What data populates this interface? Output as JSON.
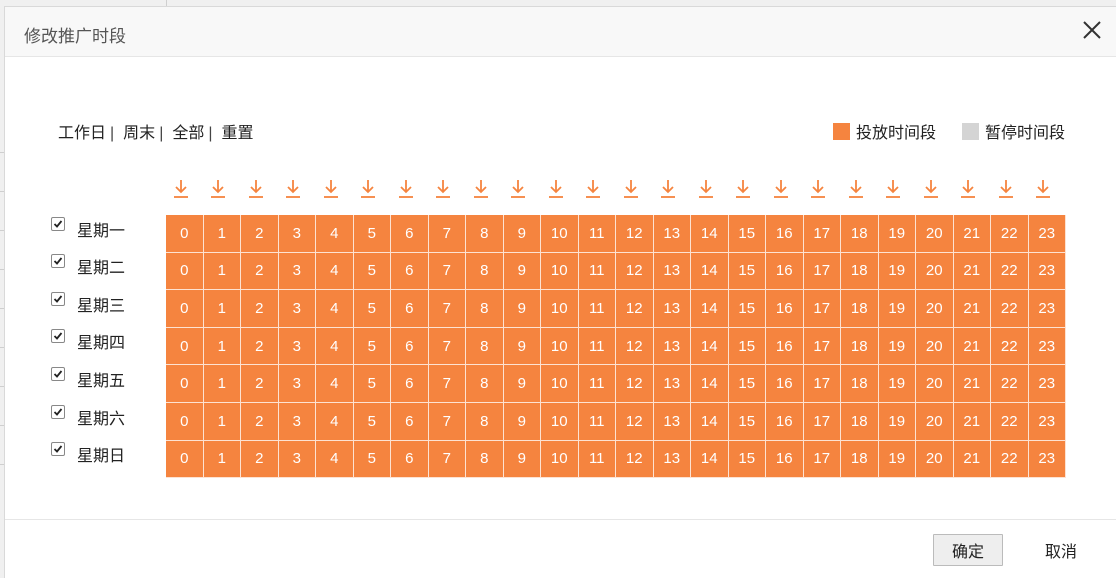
{
  "dialog": {
    "title": "修改推广时段",
    "close_icon": "close-icon"
  },
  "quick_links": [
    {
      "label": "工作日",
      "sep": "|"
    },
    {
      "label": "周末",
      "sep": "|"
    },
    {
      "label": "全部",
      "sep": "|"
    },
    {
      "label": "重置",
      "sep": ""
    }
  ],
  "legend": {
    "active_label": "投放时间段",
    "active_color": "#f5843f",
    "paused_label": "暂停时间段",
    "paused_color": "#d4d4d4"
  },
  "hours": [
    "0",
    "1",
    "2",
    "3",
    "4",
    "5",
    "6",
    "7",
    "8",
    "9",
    "10",
    "11",
    "12",
    "13",
    "14",
    "15",
    "16",
    "17",
    "18",
    "19",
    "20",
    "21",
    "22",
    "23"
  ],
  "days": [
    {
      "label": "星期一",
      "checked": true
    },
    {
      "label": "星期二",
      "checked": true
    },
    {
      "label": "星期三",
      "checked": true
    },
    {
      "label": "星期四",
      "checked": true
    },
    {
      "label": "星期五",
      "checked": true
    },
    {
      "label": "星期六",
      "checked": true
    },
    {
      "label": "星期日",
      "checked": true
    }
  ],
  "column_toggle_icon": "arrow-down-icon",
  "footer": {
    "ok_label": "确定",
    "cancel_label": "取消"
  }
}
